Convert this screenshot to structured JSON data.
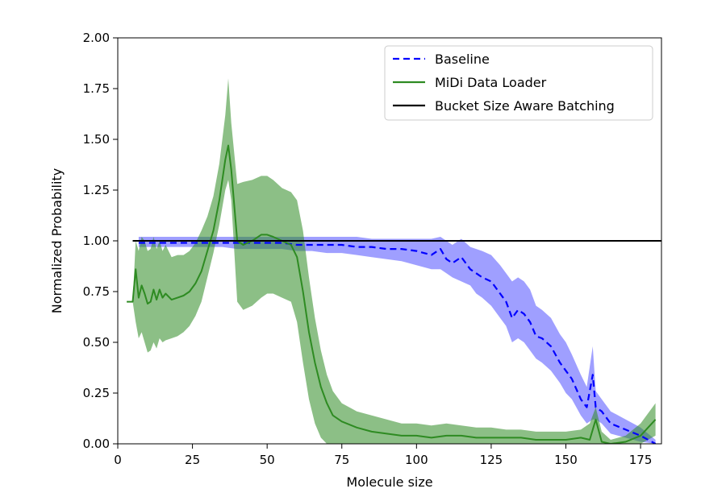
{
  "chart_data": {
    "type": "line",
    "title": "",
    "xlabel": "Molecule size",
    "ylabel": "Normalized Probability",
    "xlim": [
      0,
      182
    ],
    "ylim": [
      0,
      2.0
    ],
    "x_ticks": [
      0,
      25,
      50,
      75,
      100,
      125,
      150,
      175
    ],
    "x_tick_labels": [
      "0",
      "25",
      "50",
      "75",
      "100",
      "125",
      "150",
      "175"
    ],
    "y_ticks": [
      0,
      0.25,
      0.5,
      0.75,
      1.0,
      1.25,
      1.5,
      1.75,
      2.0
    ],
    "y_tick_labels": [
      "0.00",
      "0.25",
      "0.50",
      "0.75",
      "1.00",
      "1.25",
      "1.50",
      "1.75",
      "2.00"
    ],
    "grid": false,
    "legend_position": "top-right",
    "series": [
      {
        "name": "Baseline",
        "color": "#0000ff",
        "line_style": "dashed",
        "x": [
          7,
          10,
          15,
          20,
          25,
          30,
          35,
          40,
          45,
          50,
          55,
          60,
          65,
          70,
          75,
          80,
          85,
          90,
          95,
          100,
          105,
          108,
          110,
          112,
          115,
          118,
          120,
          122,
          125,
          128,
          130,
          132,
          134,
          136,
          138,
          140,
          142,
          145,
          148,
          150,
          152,
          155,
          157,
          159,
          160,
          162,
          165,
          170,
          175,
          180
        ],
        "y": [
          0.99,
          0.99,
          0.99,
          0.99,
          0.99,
          0.99,
          0.99,
          0.99,
          0.99,
          0.99,
          0.99,
          0.98,
          0.98,
          0.98,
          0.98,
          0.97,
          0.97,
          0.96,
          0.96,
          0.95,
          0.93,
          0.96,
          0.91,
          0.89,
          0.92,
          0.86,
          0.84,
          0.82,
          0.8,
          0.74,
          0.7,
          0.62,
          0.66,
          0.64,
          0.6,
          0.53,
          0.52,
          0.48,
          0.4,
          0.36,
          0.32,
          0.22,
          0.18,
          0.34,
          0.18,
          0.16,
          0.1,
          0.07,
          0.04,
          0.0
        ],
        "band_lower": [
          0.97,
          0.97,
          0.97,
          0.97,
          0.97,
          0.97,
          0.97,
          0.96,
          0.96,
          0.96,
          0.96,
          0.95,
          0.95,
          0.94,
          0.94,
          0.93,
          0.92,
          0.91,
          0.9,
          0.88,
          0.86,
          0.86,
          0.84,
          0.82,
          0.8,
          0.78,
          0.74,
          0.72,
          0.68,
          0.62,
          0.58,
          0.5,
          0.52,
          0.5,
          0.46,
          0.42,
          0.4,
          0.36,
          0.3,
          0.25,
          0.22,
          0.14,
          0.1,
          0.12,
          0.12,
          0.1,
          0.05,
          0.03,
          0.01,
          0.0
        ],
        "band_upper": [
          1.02,
          1.02,
          1.02,
          1.02,
          1.02,
          1.02,
          1.02,
          1.02,
          1.02,
          1.02,
          1.02,
          1.02,
          1.02,
          1.02,
          1.02,
          1.02,
          1.01,
          1.01,
          1.01,
          1.01,
          1.01,
          1.02,
          1.0,
          0.98,
          1.01,
          0.97,
          0.96,
          0.95,
          0.93,
          0.88,
          0.84,
          0.8,
          0.82,
          0.8,
          0.76,
          0.68,
          0.66,
          0.62,
          0.54,
          0.5,
          0.44,
          0.34,
          0.28,
          0.48,
          0.26,
          0.22,
          0.16,
          0.12,
          0.08,
          0.02
        ]
      },
      {
        "name": "MiDi Data Loader",
        "color": "#2e8b22",
        "line_style": "solid",
        "x": [
          3,
          5,
          6,
          7,
          8,
          9,
          10,
          11,
          12,
          13,
          14,
          15,
          16,
          18,
          20,
          22,
          24,
          26,
          28,
          30,
          32,
          34,
          36,
          37,
          38,
          40,
          42,
          45,
          48,
          50,
          52,
          55,
          58,
          60,
          62,
          64,
          66,
          68,
          70,
          72,
          75,
          80,
          85,
          90,
          95,
          100,
          105,
          110,
          115,
          120,
          125,
          130,
          135,
          140,
          145,
          150,
          155,
          158,
          160,
          162,
          165,
          170,
          175,
          180
        ],
        "y": [
          0.7,
          0.7,
          0.86,
          0.72,
          0.78,
          0.74,
          0.69,
          0.7,
          0.76,
          0.71,
          0.76,
          0.72,
          0.74,
          0.71,
          0.72,
          0.73,
          0.75,
          0.79,
          0.85,
          0.95,
          1.05,
          1.2,
          1.4,
          1.47,
          1.35,
          1.0,
          0.98,
          1.0,
          1.03,
          1.03,
          1.02,
          1.0,
          0.98,
          0.92,
          0.75,
          0.55,
          0.4,
          0.28,
          0.2,
          0.14,
          0.11,
          0.08,
          0.06,
          0.05,
          0.04,
          0.04,
          0.03,
          0.04,
          0.04,
          0.03,
          0.03,
          0.03,
          0.03,
          0.02,
          0.02,
          0.02,
          0.03,
          0.02,
          0.12,
          0.01,
          0.0,
          0.01,
          0.04,
          0.12
        ],
        "band_lower": [
          0.7,
          0.7,
          0.6,
          0.52,
          0.55,
          0.5,
          0.45,
          0.46,
          0.5,
          0.47,
          0.52,
          0.5,
          0.51,
          0.52,
          0.53,
          0.55,
          0.58,
          0.63,
          0.7,
          0.82,
          0.94,
          1.08,
          1.25,
          1.3,
          1.2,
          0.7,
          0.66,
          0.68,
          0.72,
          0.74,
          0.74,
          0.72,
          0.7,
          0.6,
          0.4,
          0.22,
          0.1,
          0.03,
          0.0,
          0.0,
          0.0,
          0.0,
          0.0,
          0.0,
          0.0,
          0.0,
          0.0,
          0.0,
          0.0,
          0.0,
          0.0,
          0.0,
          0.0,
          0.0,
          0.0,
          0.0,
          0.0,
          0.0,
          0.0,
          0.0,
          0.0,
          0.0,
          0.0,
          0.04
        ],
        "band_upper": [
          0.7,
          0.7,
          1.0,
          0.95,
          1.02,
          1.0,
          0.95,
          0.96,
          1.02,
          0.96,
          1.0,
          0.95,
          0.98,
          0.92,
          0.93,
          0.93,
          0.95,
          0.99,
          1.05,
          1.12,
          1.22,
          1.38,
          1.62,
          1.8,
          1.58,
          1.28,
          1.29,
          1.3,
          1.32,
          1.32,
          1.3,
          1.26,
          1.24,
          1.2,
          1.05,
          0.82,
          0.62,
          0.46,
          0.34,
          0.26,
          0.2,
          0.16,
          0.14,
          0.12,
          0.1,
          0.1,
          0.09,
          0.1,
          0.09,
          0.08,
          0.08,
          0.07,
          0.07,
          0.06,
          0.06,
          0.06,
          0.07,
          0.1,
          0.18,
          0.06,
          0.02,
          0.04,
          0.1,
          0.2
        ]
      },
      {
        "name": "Bucket Size Aware Batching",
        "color": "#000000",
        "line_style": "solid",
        "x": [
          5,
          182
        ],
        "y": [
          1.0,
          1.0
        ]
      }
    ]
  }
}
